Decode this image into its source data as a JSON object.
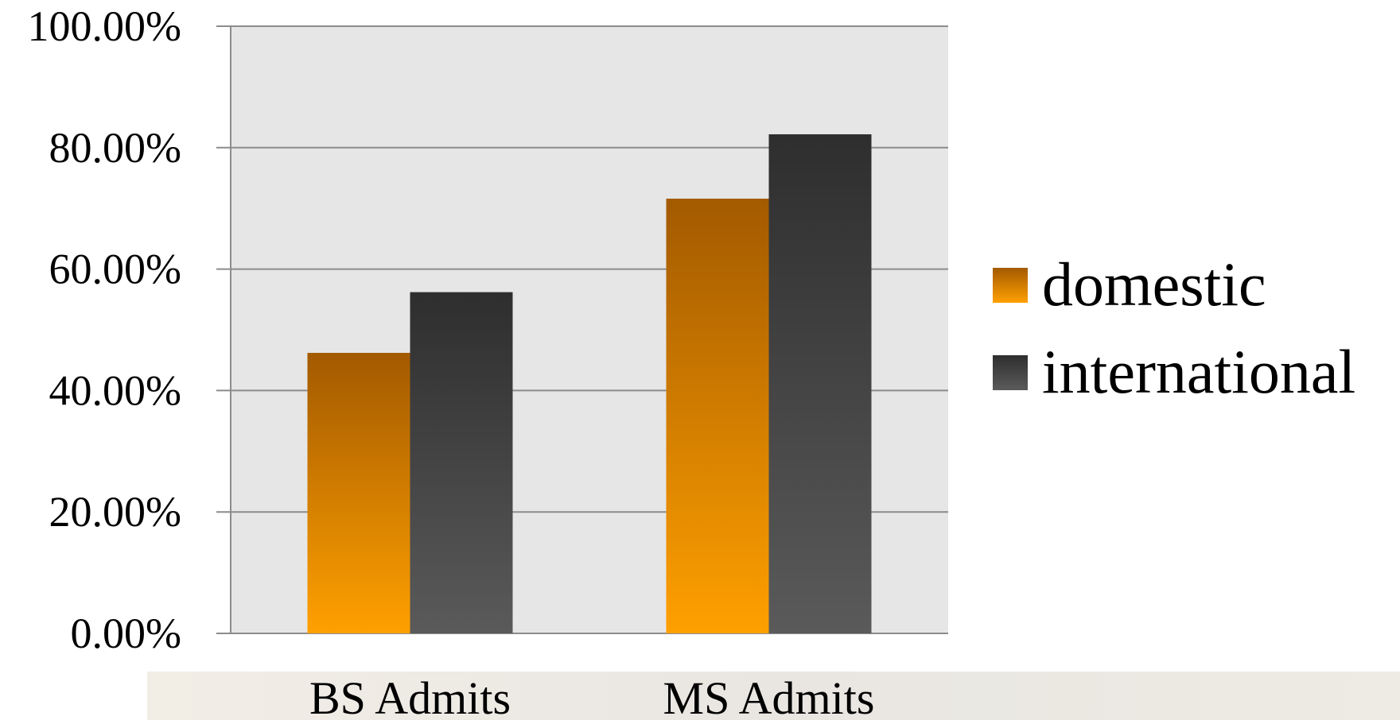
{
  "chart_data": {
    "type": "bar",
    "title": "",
    "xlabel": "",
    "ylabel": "",
    "categories": [
      "BS Admits",
      "MS Admits"
    ],
    "series": [
      {
        "name": "domestic",
        "values": [
          46.2,
          71.6
        ]
      },
      {
        "name": "international",
        "values": [
          56.2,
          82.2
        ]
      }
    ],
    "ylim": [
      0,
      100
    ],
    "yticks": [
      0,
      20,
      40,
      60,
      80,
      100
    ],
    "ytick_labels": [
      "0.00%",
      "20.00%",
      "40.00%",
      "60.00%",
      "80.00%",
      "100.00%"
    ],
    "grid": true,
    "legend_position": "right",
    "colors": {
      "domestic_top": "#A35A00",
      "domestic_bottom": "#FFA000",
      "international_top": "#2E2E2E",
      "international_bottom": "#5A5A5A",
      "plot_background": "#E6E6E6",
      "gridline": "#8C8C8C"
    }
  }
}
